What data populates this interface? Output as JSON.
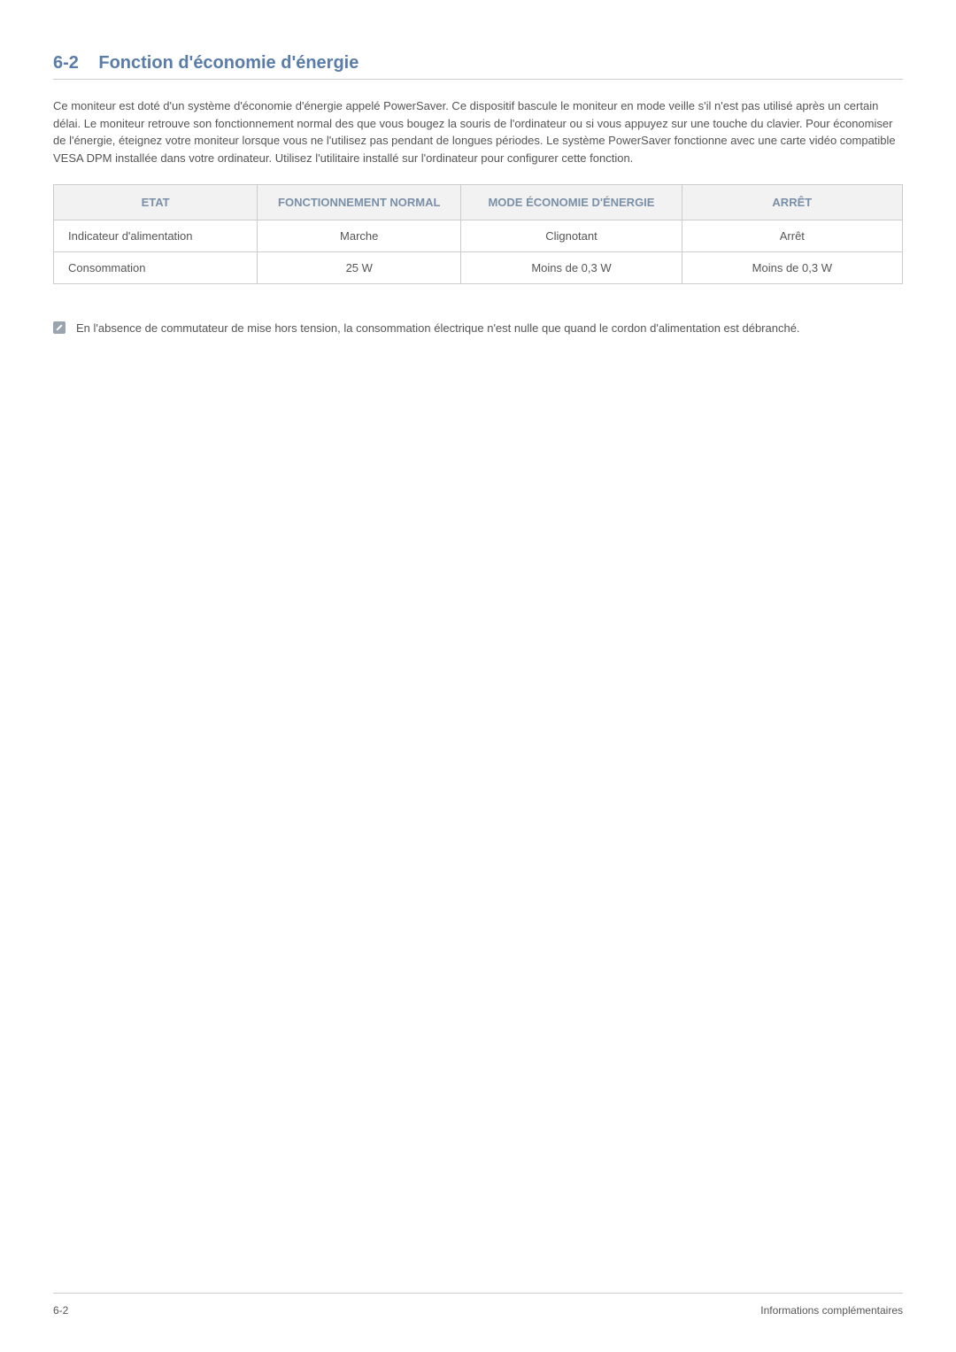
{
  "heading": {
    "number": "6-2",
    "title": "Fonction d'économie d'énergie"
  },
  "body_paragraph": "Ce moniteur est doté d'un système d'économie d'énergie appelé PowerSaver. Ce dispositif bascule le moniteur en mode veille s'il n'est pas utilisé après un certain délai. Le moniteur retrouve son fonctionnement normal des que vous bougez la souris de l'ordinateur ou si vous appuyez sur une touche du clavier. Pour économiser de l'énergie, éteignez votre moniteur lorsque vous ne l'utilisez pas pendant de longues périodes. Le système PowerSaver fonctionne avec une carte vidéo compatible VESA DPM installée dans votre ordinateur. Utilisez l'utilitaire installé sur l'ordinateur pour configurer cette fonction.",
  "table": {
    "headers": [
      "ETAT",
      "FONCTIONNEMENT NORMAL",
      "MODE ÉCONOMIE D'ÉNERGIE",
      "ARRÊT"
    ],
    "rows": [
      [
        "Indicateur d'alimentation",
        "Marche",
        "Clignotant",
        "Arrêt"
      ],
      [
        "Consommation",
        "25 W",
        "Moins de 0,3 W",
        "Moins de 0,3 W"
      ]
    ],
    "col_widths": [
      "24%",
      "24%",
      "26%",
      "26%"
    ],
    "header_bg": "#f2f2f2",
    "header_color": "#7a8fa8",
    "border_color": "#cccccc",
    "cell_color": "#555555"
  },
  "note_text": "En l'absence de commutateur de mise hors tension, la consommation électrique n'est nulle que quand le cordon d'alimentation est débranché.",
  "footer": {
    "left": "6-2",
    "right": "Informations complémentaires"
  },
  "colors": {
    "heading": "#5a7ca8",
    "text": "#555555",
    "rule": "#cccccc",
    "note_icon": "#9aa4ae",
    "background": "#ffffff"
  }
}
